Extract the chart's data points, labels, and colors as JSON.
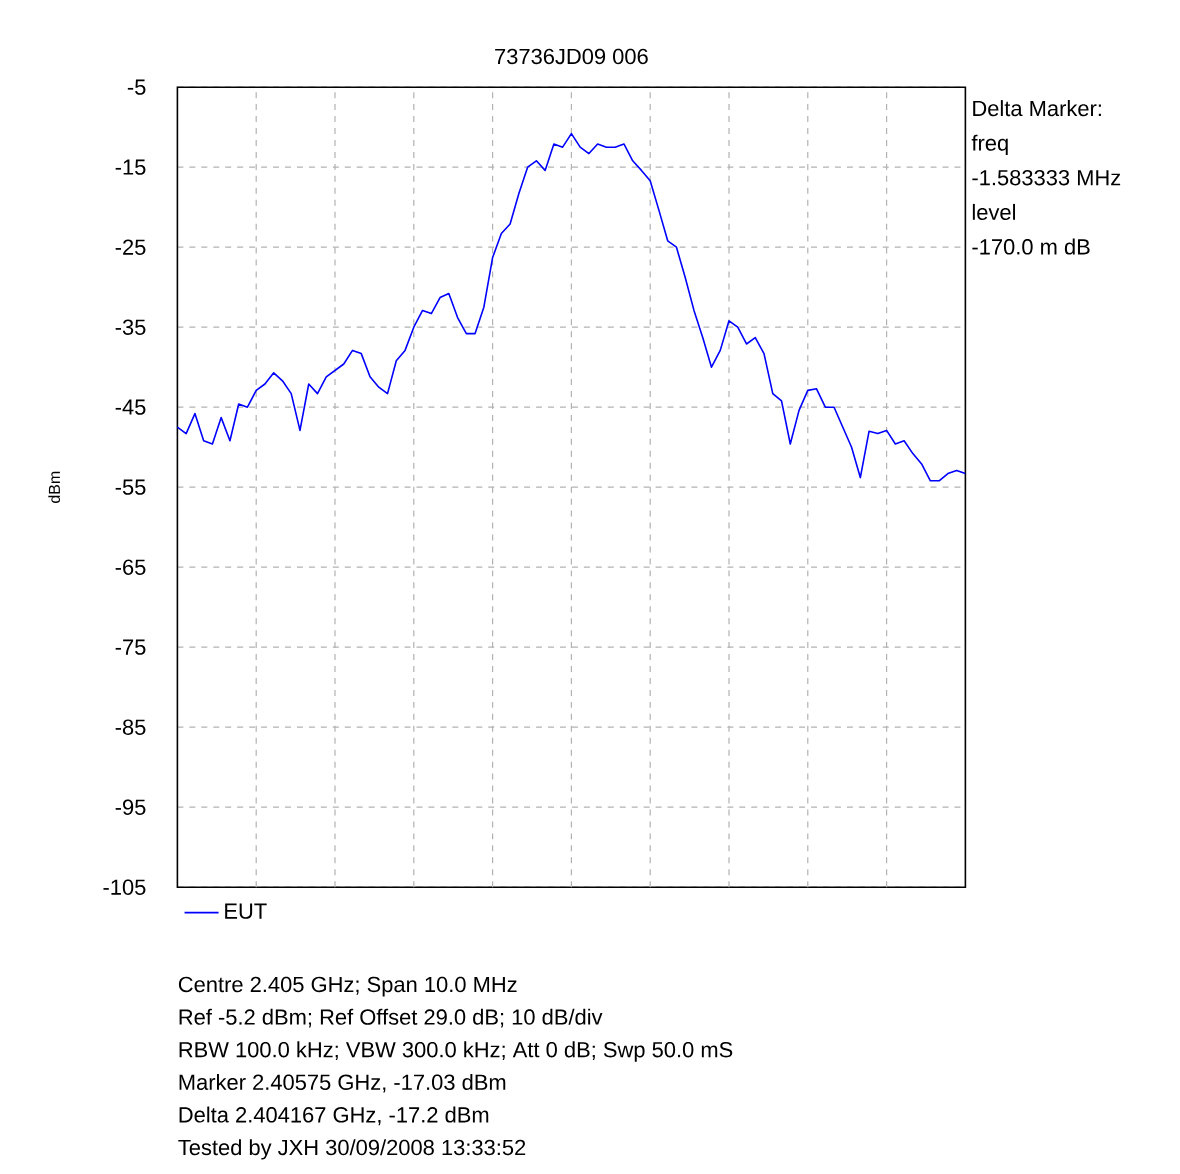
{
  "chart_data": {
    "type": "line",
    "title": "73736JD09 006",
    "ylabel": "dBm",
    "categories": [
      null,
      null,
      null,
      null,
      null,
      null,
      null,
      null,
      null,
      null,
      null,
      null,
      null,
      null,
      null,
      null,
      null,
      null,
      null,
      null,
      null,
      null,
      null,
      null,
      null,
      null,
      null,
      null,
      null,
      null,
      null,
      null,
      null,
      null,
      null,
      null,
      null,
      null,
      null,
      null,
      null,
      null,
      null,
      null,
      null,
      null,
      null,
      null,
      null,
      null,
      null,
      null,
      null,
      null,
      null,
      null,
      null,
      null,
      null,
      null,
      null,
      null,
      null,
      null,
      null,
      null,
      null,
      null,
      null,
      null,
      null,
      null,
      null,
      null,
      null,
      null,
      null,
      null,
      null,
      null,
      null,
      null,
      null,
      null,
      null,
      null,
      null,
      null,
      null,
      null,
      null
    ],
    "ylim": [
      -105,
      -5
    ],
    "yticks": [
      -105,
      -95,
      -85,
      -75,
      -65,
      -55,
      -45,
      -35,
      -25,
      -15,
      -5
    ],
    "tick_labels": "y",
    "grid": true,
    "legend": "bottom",
    "series": [
      {
        "name": "EUT",
        "color": "#0000ff",
        "values": [
          -47.5,
          -48.3,
          -45.8,
          -49.2,
          -49.6,
          -46.3,
          -49.2,
          -44.6,
          -45,
          -42.9,
          -42.1,
          -40.7,
          -41.7,
          -43.3,
          -47.9,
          -42.1,
          -43.3,
          -41.2,
          -40.4,
          -39.6,
          -37.9,
          -38.3,
          -41.2,
          -42.5,
          -43.3,
          -39.2,
          -37.9,
          -35,
          -32.9,
          -33.3,
          -31.3,
          -30.8,
          -33.8,
          -35.8,
          -35.8,
          -32.5,
          -26.3,
          -23.3,
          -22.1,
          -18.3,
          -15,
          -14.2,
          -15.4,
          -12.1,
          -12.5,
          -10.8,
          -12.5,
          -13.3,
          -12.1,
          -12.5,
          -12.5,
          -12.1,
          -14.2,
          -15.4,
          -16.7,
          -20.4,
          -24.2,
          -25,
          -28.8,
          -32.9,
          -36.3,
          -40,
          -37.9,
          -34.2,
          -35,
          -37.1,
          -36.3,
          -38.3,
          -43.3,
          -44.2,
          -49.6,
          -45.4,
          -42.9,
          -42.7,
          -45,
          -45,
          -47.5,
          -50,
          -53.8,
          -48,
          -48.3,
          -47.9,
          -49.6,
          -49.2,
          -50.8,
          -52.1,
          -54.2,
          -54.2,
          -53.3,
          -52.9,
          -53.3
        ]
      }
    ],
    "annotations": [
      "Delta Marker:",
      "freq",
      "-1.583333 MHz",
      "level",
      "-170.0 m dB",
      "Centre 2.405 GHz; Span 10.0 MHz",
      "Ref -5.2 dBm; Ref Offset 29.0 dB; 10 dB/div",
      "RBW 100.0 kHz; VBW 300.0 kHz; Att 0 dB; Swp 50.0 mS",
      "Marker 2.40575 GHz, -17.03 dBm",
      "Delta 2.404167 GHz, -17.2 dBm",
      "Tested by JXH 30/09/2008 13:33:52"
    ]
  }
}
